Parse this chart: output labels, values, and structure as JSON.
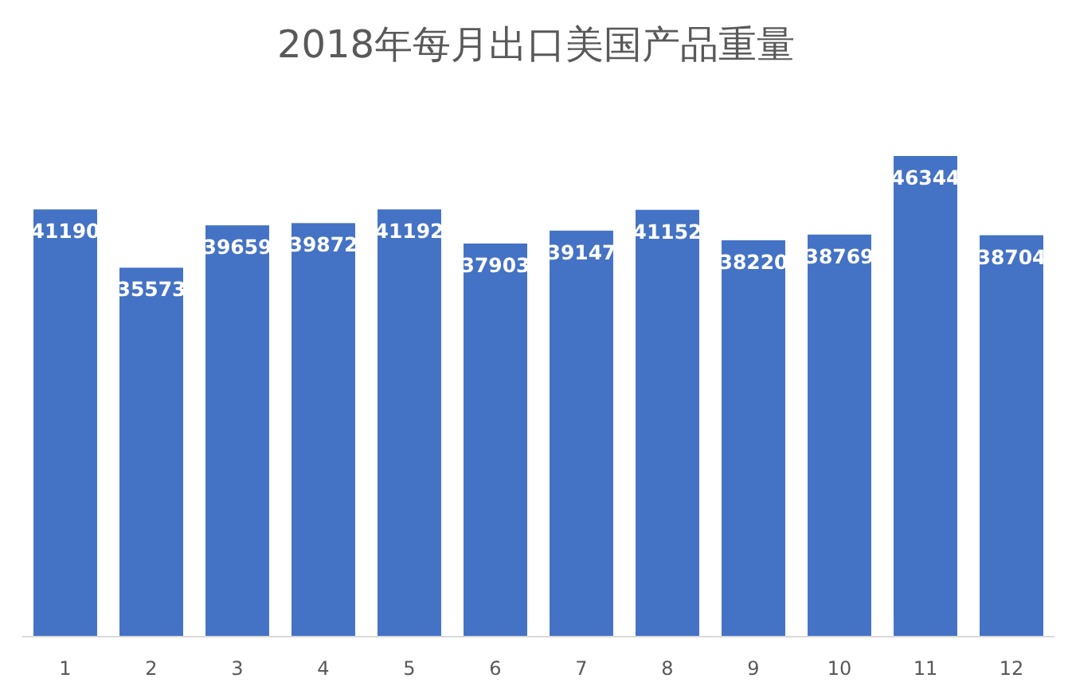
{
  "chart_data": {
    "type": "bar",
    "title": "2018年每月出口美国产品重量",
    "categories": [
      "1",
      "2",
      "3",
      "4",
      "5",
      "6",
      "7",
      "8",
      "9",
      "10",
      "11",
      "12"
    ],
    "values": [
      41190,
      35573,
      39659,
      39872,
      41192,
      37903,
      39147,
      41152,
      38220,
      38769,
      46344,
      38704
    ],
    "color": "#4472c4",
    "data_labels": true
  }
}
